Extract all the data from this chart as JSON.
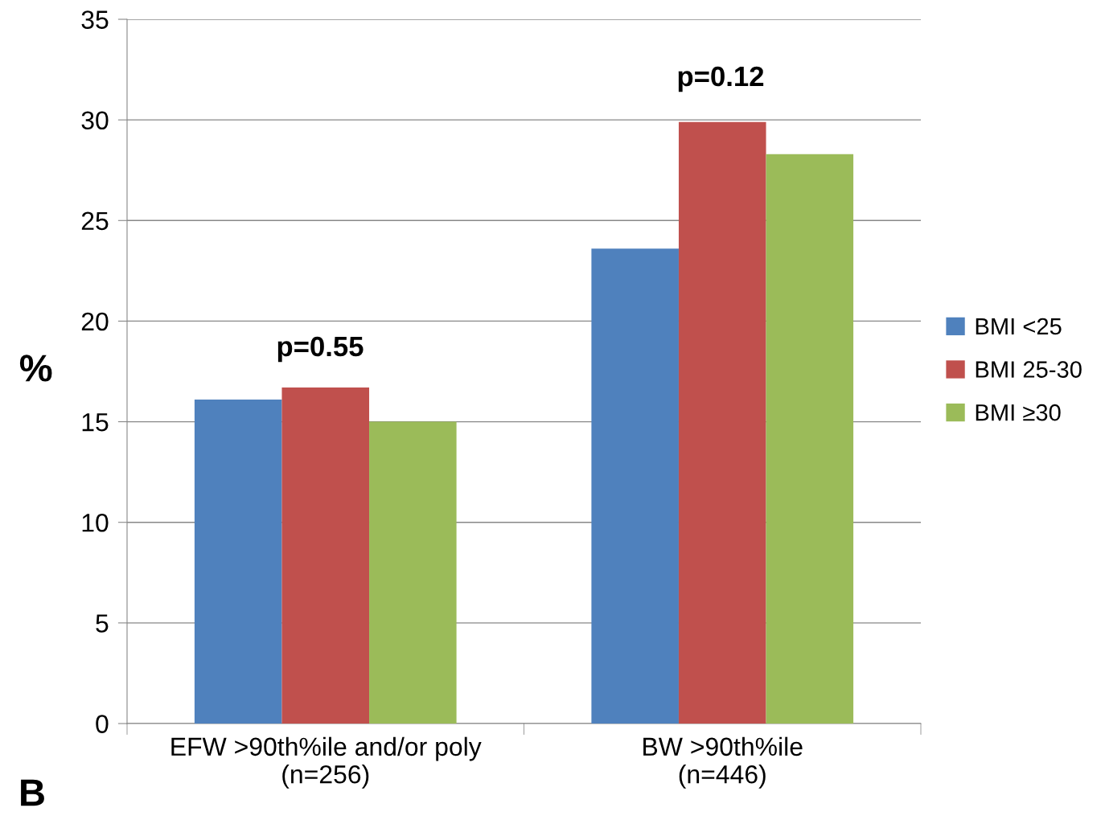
{
  "chart_data": {
    "type": "bar",
    "ylabel": "%",
    "categories": [
      "EFW >90th%ile and/or poly\n(n=256)",
      "BW >90th%ile\n(n=446)"
    ],
    "series": [
      {
        "name": "BMI <25",
        "color": "#4f81bd",
        "values": [
          16.1,
          23.6
        ]
      },
      {
        "name": "BMI 25-30",
        "color": "#c0504d",
        "values": [
          16.7,
          29.9
        ]
      },
      {
        "name": "BMI ≥30",
        "color": "#9bbb59",
        "values": [
          15.0,
          28.3
        ]
      }
    ],
    "ylim": [
      0,
      35
    ],
    "yticks": [
      0,
      5,
      10,
      15,
      20,
      25,
      30,
      35
    ],
    "grid": "y",
    "legend": "right",
    "annotations": [
      "p=0.55",
      "p=0.12",
      "B"
    ]
  }
}
